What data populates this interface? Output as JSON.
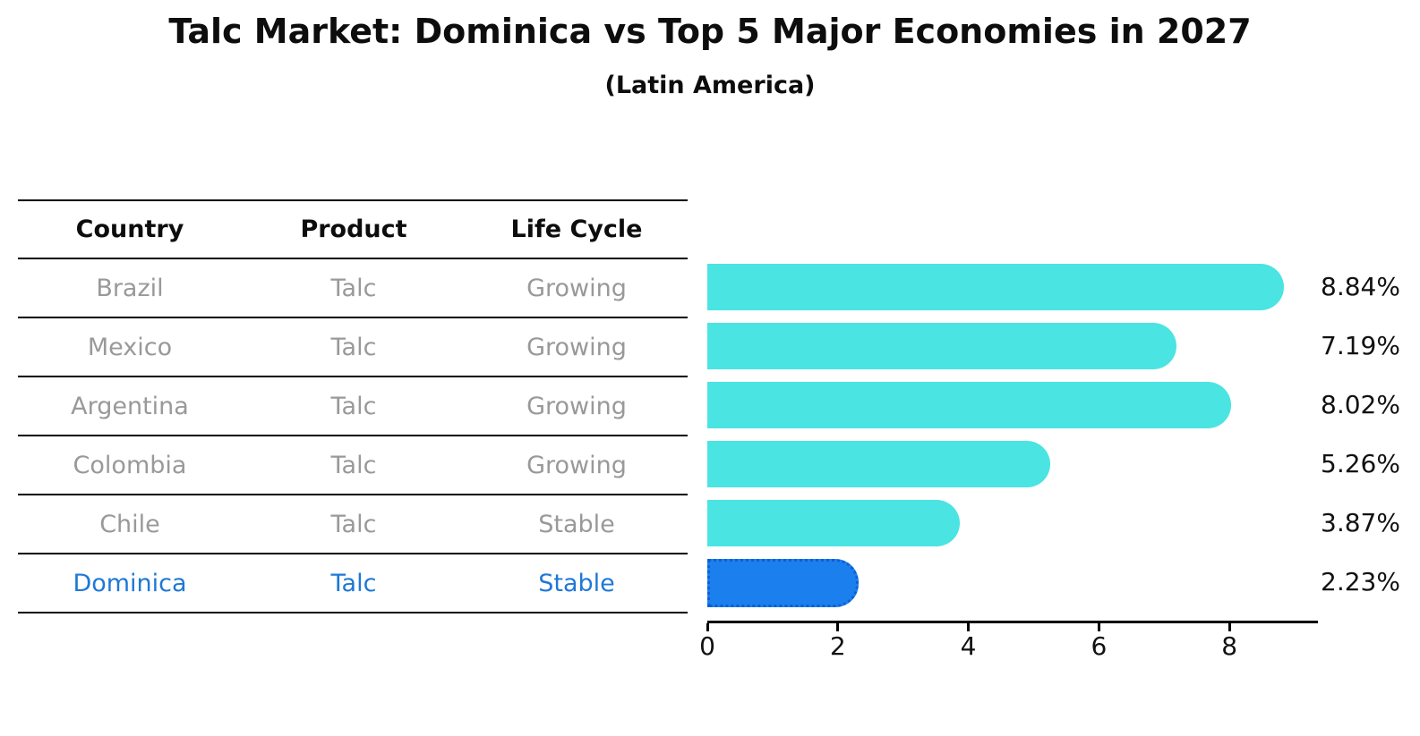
{
  "title": "Talc Market: Dominica vs Top 5 Major Economies in 2027",
  "subtitle": "(Latin America)",
  "table": {
    "headers": [
      "Country",
      "Product",
      "Life Cycle"
    ],
    "rows": [
      {
        "country": "Brazil",
        "product": "Talc",
        "life_cycle": "Growing",
        "highlight": false
      },
      {
        "country": "Mexico",
        "product": "Talc",
        "life_cycle": "Growing",
        "highlight": false
      },
      {
        "country": "Argentina",
        "product": "Talc",
        "life_cycle": "Growing",
        "highlight": false
      },
      {
        "country": "Colombia",
        "product": "Talc",
        "life_cycle": "Growing",
        "highlight": false
      },
      {
        "country": "Chile",
        "product": "Talc",
        "life_cycle": "Stable",
        "highlight": false
      },
      {
        "country": "Dominica",
        "product": "Talc",
        "life_cycle": "Stable",
        "highlight": true
      }
    ]
  },
  "chart_data": {
    "type": "bar",
    "orientation": "horizontal",
    "title": "Talc Market: Dominica vs Top 5 Major Economies in 2027 (Latin America)",
    "categories": [
      "Brazil",
      "Mexico",
      "Argentina",
      "Colombia",
      "Chile",
      "Dominica"
    ],
    "values": [
      8.84,
      7.19,
      8.02,
      5.26,
      3.87,
      2.23
    ],
    "value_labels": [
      "8.84%",
      "7.19%",
      "8.02%",
      "5.26%",
      "3.87%",
      "2.23%"
    ],
    "highlight_index": 5,
    "x_ticks": [
      "0",
      "2",
      "4",
      "6",
      "8"
    ],
    "x_tick_values": [
      0,
      2,
      4,
      6,
      8
    ],
    "xlim": [
      0,
      9.35
    ],
    "grid": false,
    "legend": "none",
    "bar_color": "#4AE4E2",
    "highlight_bar_color": "#1B80EE",
    "highlight_text_color": "#1E78D6",
    "row_text_color": "#999999",
    "axis_color": "#000000"
  }
}
